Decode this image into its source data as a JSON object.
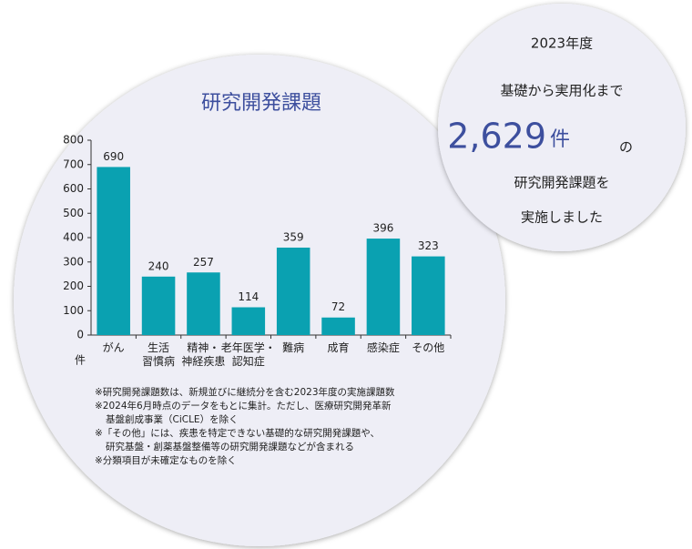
{
  "chart_data": {
    "type": "bar",
    "title": "研究開発課題",
    "y_unit": "件",
    "categories": [
      "がん",
      "生活\n習慣病",
      "精神・\n神経疾患",
      "老年医学・\n認知症",
      "難病",
      "成育",
      "感染症",
      "その他"
    ],
    "values": [
      690,
      240,
      257,
      114,
      359,
      72,
      396,
      323
    ],
    "color": "#0aa1b1",
    "ylim": [
      0,
      800
    ],
    "yticks": [
      0,
      100,
      200,
      300,
      400,
      500,
      600,
      700,
      800
    ],
    "grid": false
  },
  "notes": [
    "※研究開発課題数は、新規並びに継続分を含む2023年度の実施課題数",
    "※2024年6月時点のデータをもとに集計。ただし、医療研究開発革新\n基盤創成事業（CiCLE）を除く",
    "※「その他」には、疾患を特定できない基礎的な研究開発課題や、\n研究基盤・創薬基盤整備等の研究開発課題などが含まれる",
    "※分類項目が未確定なものを除く"
  ],
  "highlight": {
    "year": "2023年度",
    "line1": "基礎から実用化まで",
    "number": "2,629",
    "unit": "件",
    "particle": "の",
    "line2": "研究開発課題を",
    "line3": "実施しました"
  }
}
